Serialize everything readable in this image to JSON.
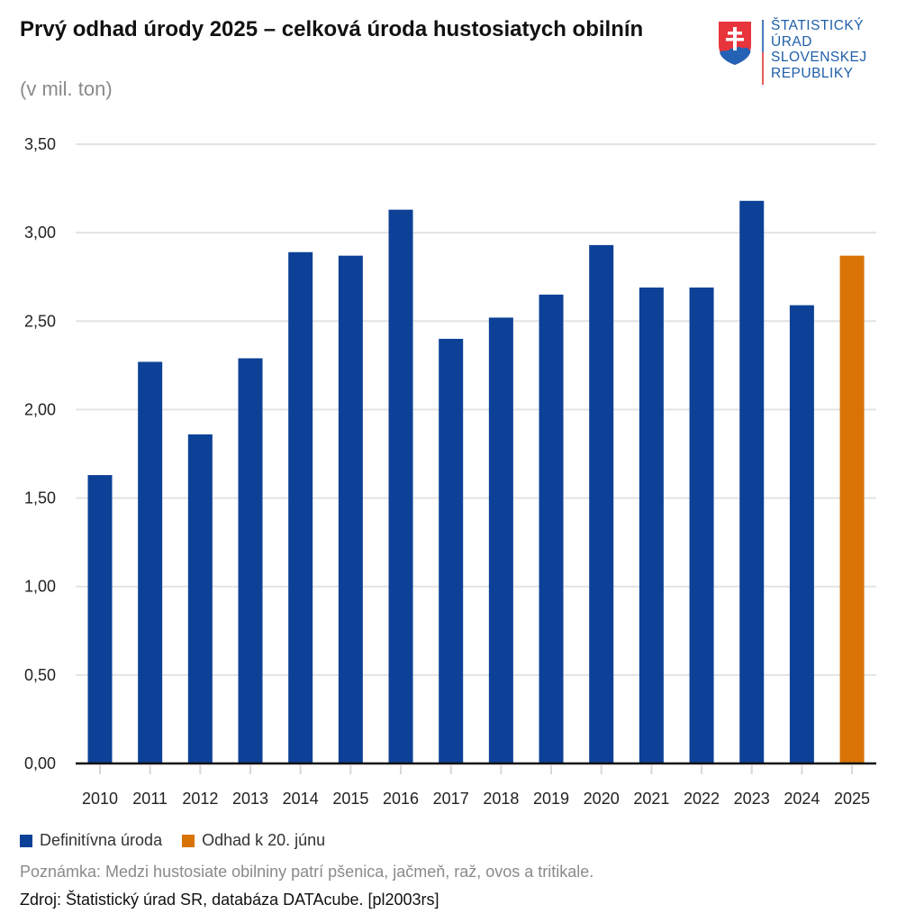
{
  "header": {
    "title": "Prvý odhad úrody 2025 – celková úroda hustosiatych obilnín",
    "subtitle": "(v mil. ton)"
  },
  "logo": {
    "lines": [
      "ŠTATISTICKÝ",
      "ÚRAD",
      "SLOVENSKEJ",
      "REPUBLIKY"
    ],
    "icon": "slovak-coat-of-arms-icon"
  },
  "colors": {
    "definitive": "#0d4197",
    "estimate": "#d97306",
    "grid": "#e3e3e3",
    "axis": "#111111"
  },
  "chart_data": {
    "type": "bar",
    "title": "Prvý odhad úrody 2025 – celková úroda hustosiatych obilnín",
    "subtitle": "(v mil. ton)",
    "xlabel": "",
    "ylabel": "",
    "ylim": [
      0,
      3.5
    ],
    "yticks": [
      "0,00",
      "0,50",
      "1,00",
      "1,50",
      "2,00",
      "2,50",
      "3,00",
      "3,50"
    ],
    "ytick_values": [
      0,
      0.5,
      1.0,
      1.5,
      2.0,
      2.5,
      3.0,
      3.5
    ],
    "grid": true,
    "legend_position": "bottom-left",
    "categories": [
      "2010",
      "2011",
      "2012",
      "2013",
      "2014",
      "2015",
      "2016",
      "2017",
      "2018",
      "2019",
      "2020",
      "2021",
      "2022",
      "2023",
      "2024",
      "2025"
    ],
    "series": [
      {
        "name": "Definitívna úroda",
        "color": "#0d4197",
        "values": [
          1.63,
          2.27,
          1.86,
          2.29,
          2.89,
          2.87,
          3.13,
          2.4,
          2.52,
          2.65,
          2.93,
          2.69,
          2.69,
          3.18,
          2.59,
          null
        ]
      },
      {
        "name": "Odhad k 20. júnu",
        "color": "#d97306",
        "values": [
          null,
          null,
          null,
          null,
          null,
          null,
          null,
          null,
          null,
          null,
          null,
          null,
          null,
          null,
          null,
          2.87
        ]
      }
    ]
  },
  "footer": {
    "note": "Poznámka: Medzi hustosiate obilniny patrí pšenica, jačmeň, raž, ovos a tritikale.",
    "source": "Zdroj: Štatistický úrad SR, databáza DATAcube. [pl2003rs]"
  }
}
